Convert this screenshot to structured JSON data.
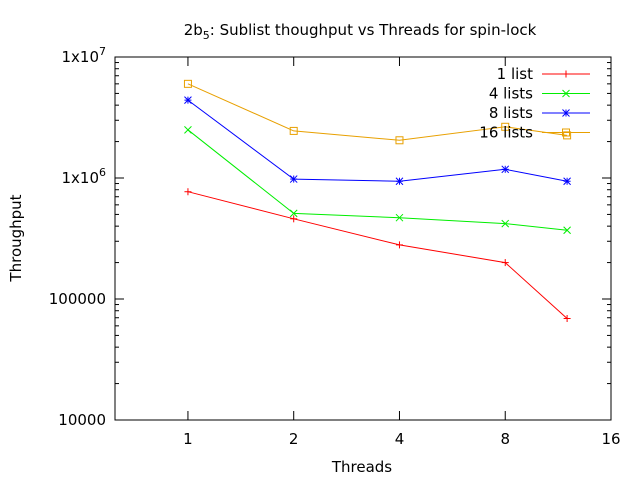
{
  "chart_data": {
    "type": "line",
    "title": "2b5: Sublist thoughput vs Threads for spin-lock",
    "title_main": "2b",
    "title_sub": "5",
    "title_rest": ": Sublist thoughput vs Threads for spin-lock",
    "xlabel": "Threads",
    "ylabel": "Throughput",
    "xscale": "log2",
    "yscale": "log10",
    "xlim": [
      0.62,
      16
    ],
    "ylim": [
      10000,
      10000000
    ],
    "x_ticks": [
      1,
      2,
      4,
      8,
      16
    ],
    "x_tick_labels": [
      "1",
      "2",
      "4",
      "8",
      "16"
    ],
    "y_ticks": [
      10000,
      100000,
      1000000,
      10000000
    ],
    "y_tick_labels": [
      {
        "label": "10000"
      },
      {
        "label": "100000"
      },
      {
        "label": "1x10",
        "sup": "6"
      },
      {
        "label": "1x10",
        "sup": "7"
      }
    ],
    "grid": false,
    "legend_position": "top-right",
    "series": [
      {
        "name": "1 list",
        "color": "#ff0000",
        "marker": "plus",
        "x": [
          1,
          2,
          4,
          8,
          12
        ],
        "y": [
          770000,
          460000,
          280000,
          200000,
          69000
        ]
      },
      {
        "name": "4 lists",
        "color": "#00ee00",
        "marker": "cross",
        "x": [
          1,
          2,
          4,
          8,
          12
        ],
        "y": [
          2500000,
          510000,
          470000,
          420000,
          370000
        ]
      },
      {
        "name": "8 lists",
        "color": "#0000ff",
        "marker": "star",
        "x": [
          1,
          2,
          4,
          8,
          12
        ],
        "y": [
          4400000,
          980000,
          940000,
          1180000,
          940000
        ]
      },
      {
        "name": "16 lists",
        "color": "#e8a000",
        "marker": "square",
        "x": [
          1,
          2,
          4,
          8,
          12
        ],
        "y": [
          6000000,
          2450000,
          2050000,
          2650000,
          2250000
        ]
      }
    ]
  }
}
